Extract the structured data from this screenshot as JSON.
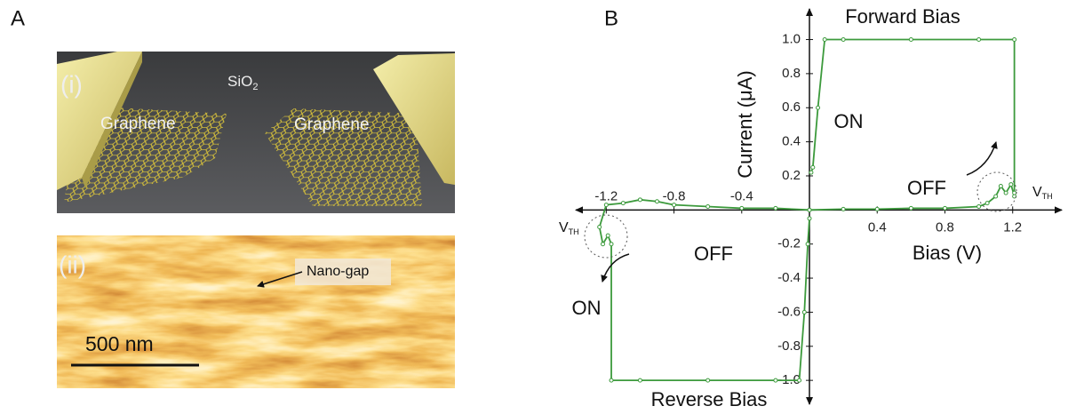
{
  "panel_a": {
    "label": "A",
    "image_i": {
      "label": "(i)",
      "substrate": "SiO",
      "substrate_subscript": "2",
      "left": "Graphene",
      "right": "Graphene"
    },
    "image_ii": {
      "label": "(ii)",
      "annotation": "Nano-gap",
      "scale_bar": "500 nm"
    }
  },
  "panel_b": {
    "label": "B"
  },
  "chart_data": {
    "type": "line",
    "xlabel": "Bias (V)",
    "ylabel": "Current (μA)",
    "xlim": [
      -1.38,
      1.49
    ],
    "ylim": [
      -1.14,
      1.18
    ],
    "xticks": [
      -1.2,
      -0.8,
      -0.4,
      0.4,
      0.8,
      1.2
    ],
    "yticks": [
      {
        "value": 1,
        "label": "1.0"
      },
      0.8,
      0.6,
      0.4,
      0.2,
      -0.2,
      -0.4,
      -0.6,
      -0.8,
      {
        "value": -1,
        "label": "-1.0"
      }
    ],
    "annotations": {
      "on_forward": "ON",
      "off_forward": "OFF",
      "off_reverse": "OFF",
      "on_reverse": "ON"
    },
    "threshold_labels": [
      {
        "main": "V",
        "sub": "TH"
      },
      {
        "main": "V",
        "sub": "TH"
      }
    ],
    "series": [
      {
        "name": "Forward Bias",
        "color": "#3c9a3c",
        "x": [
          0,
          0.2,
          0.4,
          0.6,
          0.8,
          1.0,
          1.05,
          1.1,
          1.13,
          1.16,
          1.19,
          1.21,
          1.21,
          1.21,
          1.0,
          0.6,
          0.2,
          0.09,
          0.05,
          0.02,
          0.01
        ],
        "values": [
          0,
          0.005,
          0.005,
          0.01,
          0.01,
          0.02,
          0.04,
          0.08,
          0.14,
          0.1,
          0.15,
          0.08,
          0.1,
          1.0,
          1.0,
          1.0,
          1.0,
          1.0,
          0.6,
          0.25,
          0.22
        ]
      },
      {
        "name": "Reverse Bias",
        "color": "#3c9a3c",
        "x": [
          0,
          -0.2,
          -0.4,
          -0.6,
          -0.8,
          -0.9,
          -1.0,
          -1.1,
          -1.2,
          -1.24,
          -1.22,
          -1.19,
          -1.17,
          -1.17,
          -1.0,
          -0.6,
          -0.2,
          -0.06,
          -0.03,
          -0.01,
          0
        ],
        "values": [
          0,
          0.01,
          0.01,
          0.02,
          0.03,
          0.05,
          0.06,
          0.04,
          0.03,
          -0.1,
          -0.2,
          -0.15,
          -0.2,
          -1.0,
          -1.0,
          -1.0,
          -1.0,
          -1.0,
          -0.6,
          -0.2,
          -0.05
        ]
      }
    ]
  }
}
